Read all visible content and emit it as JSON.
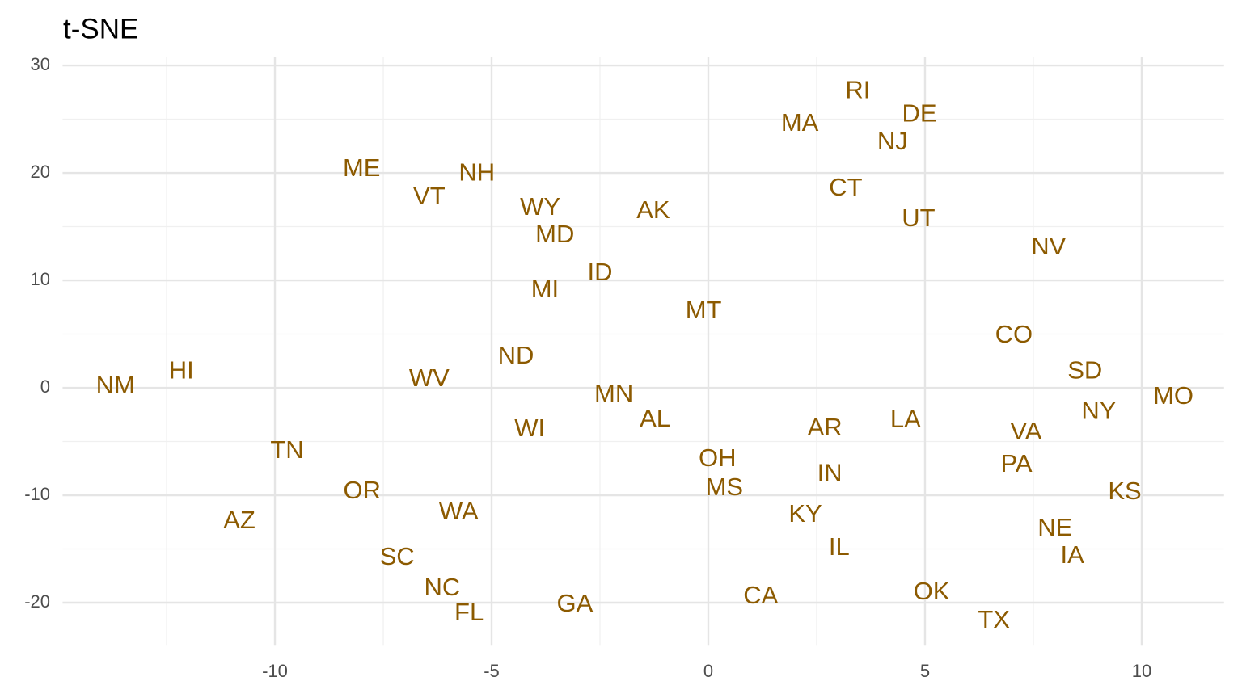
{
  "chart_data": {
    "type": "scatter",
    "title": "t-SNE",
    "color": "#8c5a00",
    "grid": true,
    "xlim": [
      -14.9,
      11.9
    ],
    "ylim": [
      -24,
      30.8
    ],
    "xticks": [
      -10,
      -5,
      0,
      5,
      10
    ],
    "yticks": [
      -20,
      -10,
      0,
      10,
      20,
      30
    ],
    "x_minor_ticks": [
      -12.5,
      -7.5,
      -2.5,
      2.5,
      7.5
    ],
    "y_minor_ticks": [
      -15,
      -5,
      5,
      15,
      25
    ],
    "labels": [
      "NM",
      "HI",
      "TN",
      "OR",
      "AZ",
      "ME",
      "VT",
      "NH",
      "WV",
      "WA",
      "SC",
      "NC",
      "FL",
      "GA",
      "WY",
      "MD",
      "MI",
      "ID",
      "ND",
      "WI",
      "AK",
      "MN",
      "AL",
      "MT",
      "OH",
      "MS",
      "CA",
      "MA",
      "RI",
      "DE",
      "NJ",
      "CT",
      "UT",
      "AR",
      "LA",
      "IN",
      "KY",
      "IL",
      "OK",
      "TX",
      "NV",
      "CO",
      "SD",
      "NY",
      "MO",
      "VA",
      "PA",
      "KS",
      "NE",
      "IA"
    ],
    "x": [
      -13.68,
      -12.16,
      -9.72,
      -7.99,
      -10.82,
      -8.0,
      -6.44,
      -5.34,
      -6.44,
      -5.76,
      -7.18,
      -6.14,
      -5.52,
      -3.08,
      -3.88,
      -3.54,
      -3.77,
      -2.5,
      -4.44,
      -4.12,
      -1.27,
      -2.18,
      -1.23,
      -0.11,
      0.21,
      0.37,
      1.21,
      2.11,
      3.45,
      4.87,
      4.25,
      3.17,
      4.85,
      2.69,
      4.55,
      2.8,
      2.24,
      3.02,
      5.15,
      6.59,
      7.85,
      7.05,
      8.69,
      9.01,
      10.73,
      7.33,
      7.11,
      9.61,
      8.0,
      8.4
    ],
    "values": [
      0.08,
      1.5,
      -5.94,
      -9.7,
      -12.48,
      20.3,
      17.67,
      19.92,
      0.75,
      -11.65,
      -15.86,
      -18.72,
      -21.05,
      -20.23,
      16.69,
      14.14,
      9.02,
      10.6,
      2.86,
      -3.91,
      16.39,
      -0.68,
      -3.01,
      7.07,
      -6.69,
      -9.4,
      -19.47,
      24.51,
      27.59,
      25.41,
      22.78,
      18.5,
      15.64,
      -3.83,
      -3.08,
      -8.05,
      -11.88,
      -14.96,
      -19.1,
      -21.73,
      13.01,
      4.81,
      1.5,
      -2.26,
      -0.9,
      -4.21,
      -7.22,
      -9.77,
      -13.16,
      -15.71
    ]
  }
}
